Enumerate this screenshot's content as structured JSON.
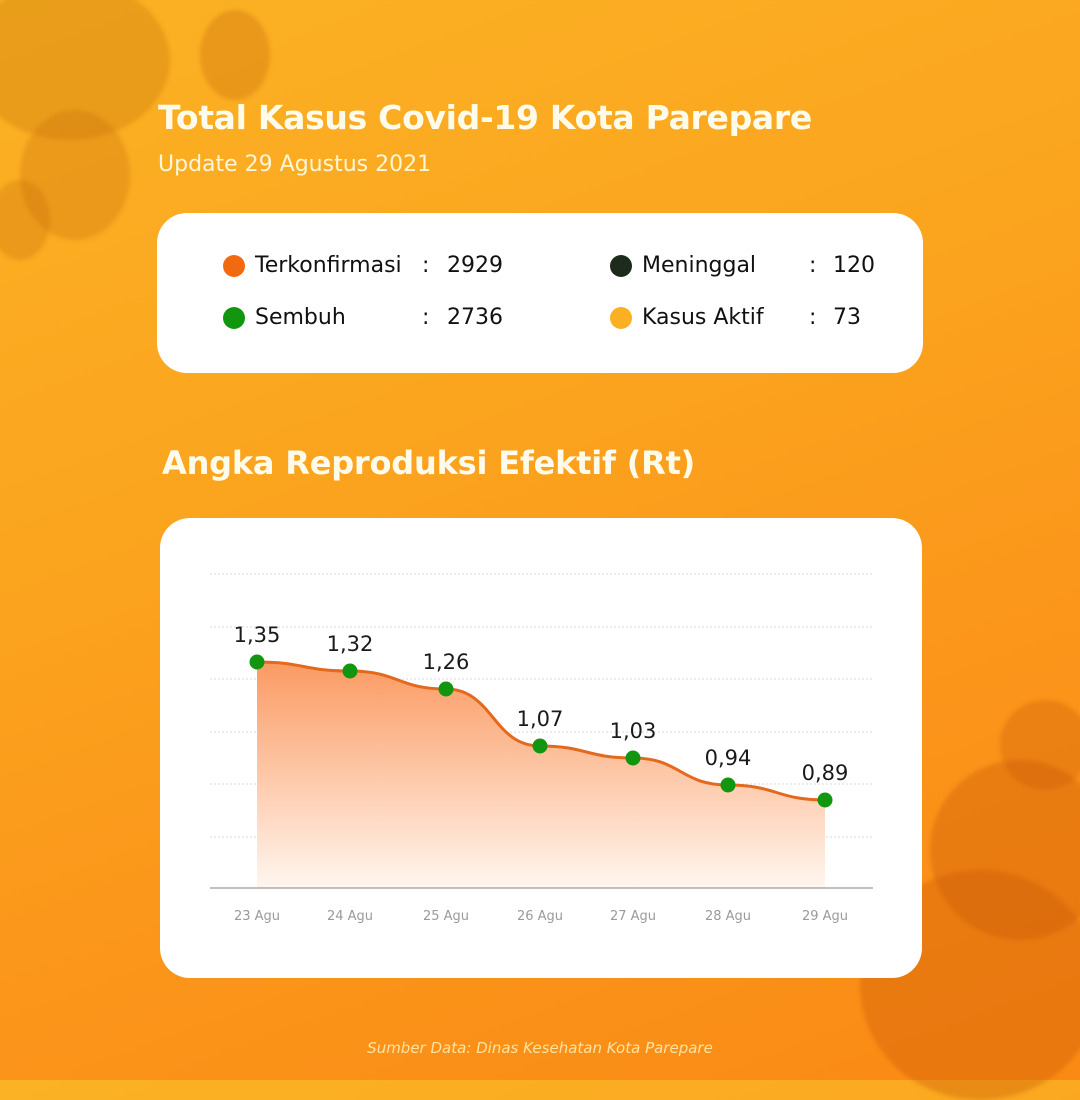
{
  "header": {
    "title": "Total Kasus Covid-19 Kota Parepare",
    "subtitle": "Update 29 Agustus 2021"
  },
  "summary": {
    "stats": [
      {
        "label": "Terkonfirmasi",
        "value": "2929",
        "color": "#f26a10",
        "icon": "orange-dot-icon"
      },
      {
        "label": "Sembuh",
        "value": "2736",
        "color": "#13960f",
        "icon": "green-dot-icon"
      },
      {
        "label": "Meninggal",
        "value": "120",
        "color": "#1c2b1c",
        "icon": "dark-dot-icon"
      },
      {
        "label": "Kasus Aktif",
        "value": "73",
        "color": "#fbb021",
        "icon": "yellow-dot-icon"
      }
    ],
    "separator": ":"
  },
  "section": {
    "title": "Angka Reproduksi Efektif (Rt)"
  },
  "chart_data": {
    "type": "area",
    "title": "Angka Reproduksi Efektif (Rt)",
    "xlabel": "",
    "ylabel": "",
    "categories": [
      "23 Agu",
      "24 Agu",
      "25 Agu",
      "26 Agu",
      "27 Agu",
      "28 Agu",
      "29 Agu"
    ],
    "values": [
      1.35,
      1.32,
      1.26,
      1.07,
      1.03,
      0.94,
      0.89
    ],
    "value_labels": [
      "1,35",
      "1,32",
      "1,26",
      "1,07",
      "1,03",
      "0,94",
      "0,89"
    ],
    "grid": true,
    "grid_style": "dotted horizontal",
    "legend": false,
    "line_color": "#e3691c",
    "marker_color": "#13960f",
    "fill_gradient": [
      "#fb9a62",
      "#fff6ef"
    ]
  },
  "footer": {
    "source": "Sumber Data: Dinas Kesehatan Kota Parepare"
  }
}
